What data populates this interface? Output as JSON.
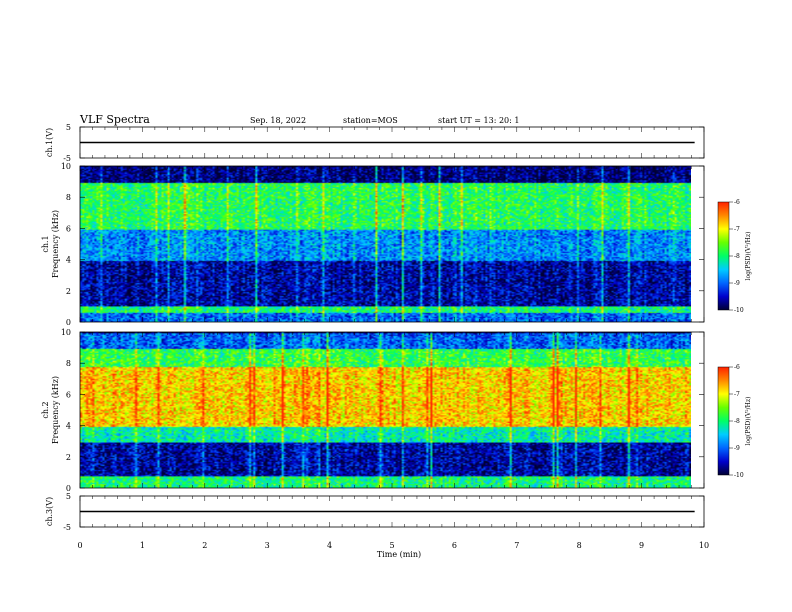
{
  "header": {
    "title": "VLF Spectra",
    "date": "Sep. 18, 2022",
    "station": "station=MOS",
    "start": "start  UT  =   13: 20: 1"
  },
  "colors": {
    "colormap": [
      "#000033",
      "#0000cc",
      "#0066ff",
      "#00ccff",
      "#00ff66",
      "#66ff00",
      "#ffff00",
      "#ff8800",
      "#ff2200",
      "#ffffff"
    ]
  },
  "chart_data": [
    {
      "type": "line",
      "panel": "ch1-waveform",
      "ylabel": "ch.1(V)",
      "xlim": [
        0,
        10
      ],
      "ylim": [
        -5,
        5
      ],
      "yticks": [
        "5",
        "-5"
      ],
      "series": [
        {
          "x": [
            0,
            9.85
          ],
          "y": [
            0,
            0
          ]
        }
      ]
    },
    {
      "type": "heatmap",
      "panel": "ch1-spectrogram",
      "ylabel": "ch.1\nFrequency (kHz)",
      "xlim": [
        0,
        10
      ],
      "ylim": [
        0,
        10
      ],
      "yticks": [
        "0",
        "2",
        "4",
        "6",
        "8",
        "10"
      ],
      "colorbar": {
        "label": "log(PSD)(V²/Hz)",
        "range": [
          -10,
          -6
        ],
        "ticks": [
          "-6",
          "-7",
          "-8",
          "-9",
          "-10"
        ]
      },
      "bands": [
        {
          "fmin": 0,
          "fmax": 0.6,
          "value": -9.0
        },
        {
          "fmin": 0.6,
          "fmax": 1.0,
          "value": -8.0
        },
        {
          "fmin": 1.0,
          "fmax": 4.0,
          "value": -9.6
        },
        {
          "fmin": 4.0,
          "fmax": 6.0,
          "value": -8.8
        },
        {
          "fmin": 6.0,
          "fmax": 9.0,
          "value": -7.9
        },
        {
          "fmin": 9.0,
          "fmax": 10.0,
          "value": -9.8
        }
      ]
    },
    {
      "type": "heatmap",
      "panel": "ch2-spectrogram",
      "ylabel": "ch.2\nFrequency (kHz)",
      "xlim": [
        0,
        10
      ],
      "ylim": [
        0,
        10
      ],
      "yticks": [
        "0",
        "2",
        "4",
        "6",
        "8",
        "10"
      ],
      "colorbar": {
        "label": "log(PSD)(V²/Hz)",
        "range": [
          -10,
          -6
        ],
        "ticks": [
          "-6",
          "-7",
          "-8",
          "-9",
          "-10"
        ]
      },
      "bands": [
        {
          "fmin": 0,
          "fmax": 0.8,
          "value": -8.0
        },
        {
          "fmin": 0.8,
          "fmax": 3.0,
          "value": -9.6
        },
        {
          "fmin": 3.0,
          "fmax": 4.0,
          "value": -8.2
        },
        {
          "fmin": 4.0,
          "fmax": 7.8,
          "value": -6.8
        },
        {
          "fmin": 7.8,
          "fmax": 9.0,
          "value": -7.8
        },
        {
          "fmin": 9.0,
          "fmax": 10.0,
          "value": -9.0
        }
      ]
    },
    {
      "type": "line",
      "panel": "ch3-waveform",
      "ylabel": "ch.3(V)",
      "xlim": [
        0,
        10
      ],
      "ylim": [
        -5,
        5
      ],
      "yticks": [
        "5",
        "-5"
      ],
      "series": [
        {
          "x": [
            0,
            9.85
          ],
          "y": [
            0,
            0
          ]
        }
      ]
    }
  ],
  "xaxis": {
    "label": "Time  (min)",
    "ticks": [
      "0",
      "1",
      "2",
      "3",
      "4",
      "5",
      "6",
      "7",
      "8",
      "9",
      "10"
    ]
  }
}
